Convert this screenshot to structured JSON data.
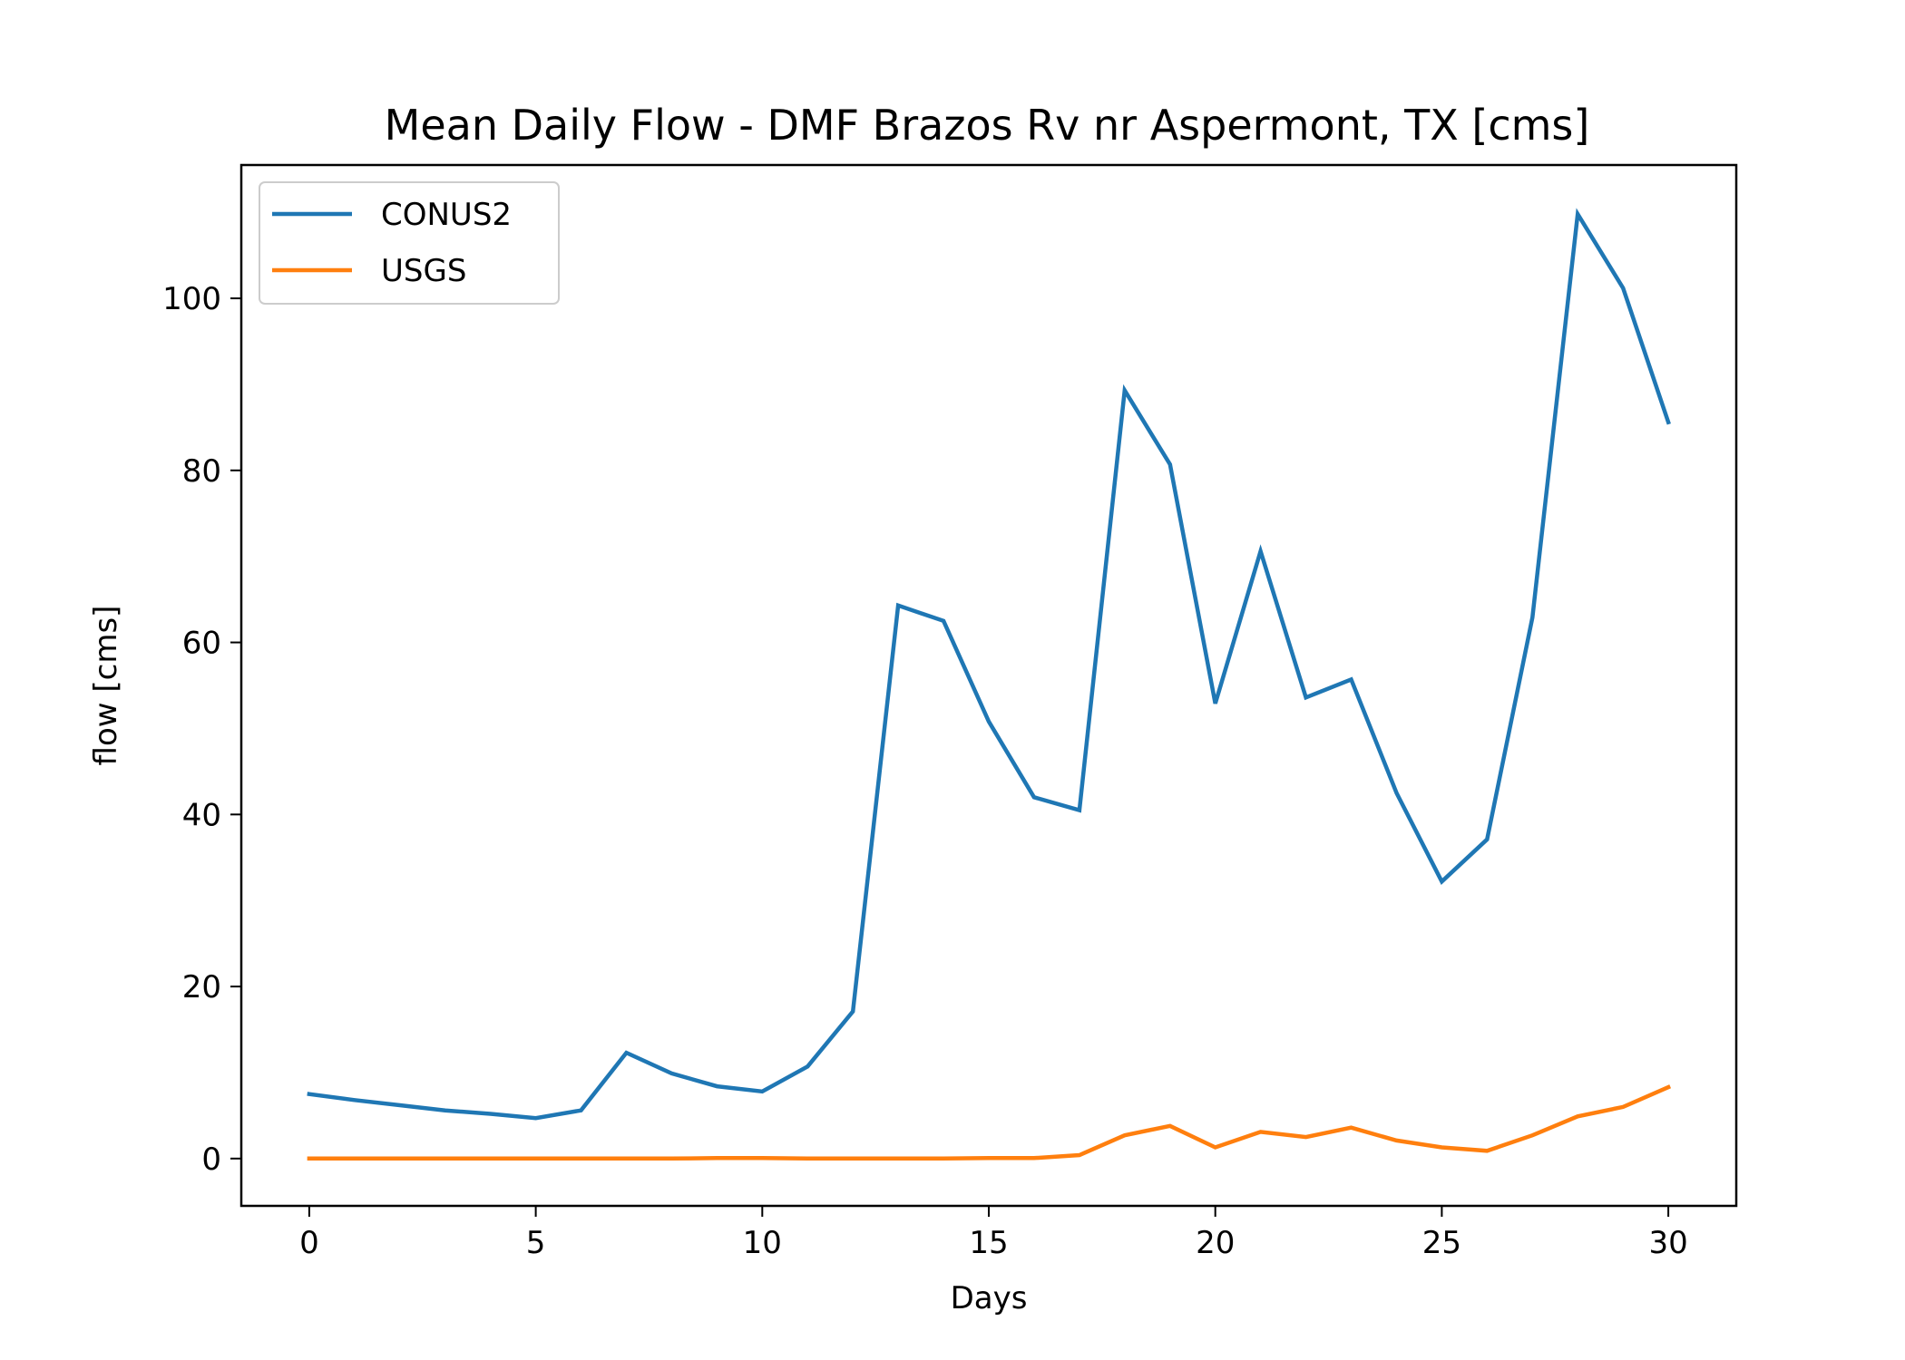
{
  "chart_data": {
    "type": "line",
    "title": "Mean Daily Flow - DMF Brazos Rv nr Aspermont, TX [cms]",
    "xlabel": "Days",
    "ylabel": "flow [cms]",
    "xlim": [
      -1.5,
      31.5
    ],
    "ylim": [
      -5.5,
      115.5
    ],
    "xticks": [
      0,
      5,
      10,
      15,
      20,
      25,
      30
    ],
    "yticks": [
      0,
      20,
      40,
      60,
      80,
      100
    ],
    "grid": false,
    "legend_position": "upper-left",
    "x": [
      0,
      1,
      2,
      3,
      4,
      5,
      6,
      7,
      8,
      9,
      10,
      11,
      12,
      13,
      14,
      15,
      16,
      17,
      18,
      19,
      20,
      21,
      22,
      23,
      24,
      25,
      26,
      27,
      28,
      29,
      30
    ],
    "series": [
      {
        "name": "CONUS2",
        "color": "#1f77b4",
        "values": [
          7.5,
          6.8,
          6.2,
          5.6,
          5.2,
          4.7,
          5.6,
          12.3,
          9.9,
          8.4,
          7.8,
          10.7,
          17.1,
          64.3,
          62.5,
          50.8,
          42.0,
          40.5,
          89.3,
          80.7,
          52.9,
          70.6,
          53.6,
          55.7,
          42.5,
          32.2,
          37.1,
          62.9,
          109.8,
          101.2,
          85.6
        ]
      },
      {
        "name": "USGS",
        "color": "#ff7f0e",
        "values": [
          0.0,
          0.0,
          0.0,
          0.0,
          0.0,
          0.0,
          0.0,
          0.0,
          0.0,
          0.05,
          0.05,
          0.0,
          0.0,
          0.0,
          0.0,
          0.05,
          0.05,
          0.4,
          2.7,
          3.8,
          1.3,
          3.1,
          2.5,
          3.6,
          2.1,
          1.3,
          0.9,
          2.7,
          4.9,
          6.0,
          8.3
        ]
      }
    ]
  }
}
